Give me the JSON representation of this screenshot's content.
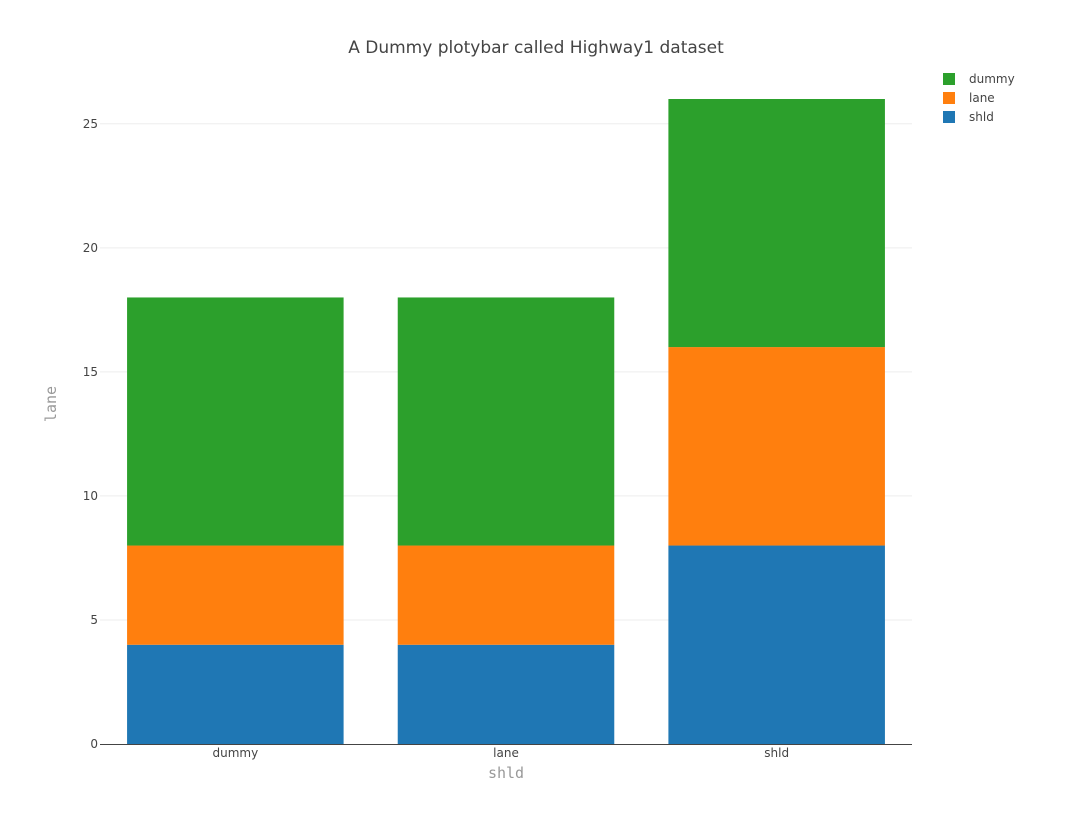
{
  "chart_data": {
    "type": "bar",
    "stacked": true,
    "title": "A Dummy plotybar called Highway1 dataset",
    "xlabel": "shld",
    "ylabel": "lane",
    "categories": [
      "dummy",
      "lane",
      "shld"
    ],
    "series": [
      {
        "name": "shld",
        "color": "#1f77b4",
        "values": [
          4,
          4,
          8
        ]
      },
      {
        "name": "lane",
        "color": "#ff7f0e",
        "values": [
          4,
          4,
          8
        ]
      },
      {
        "name": "dummy",
        "color": "#2ca02c",
        "values": [
          10,
          10,
          10
        ]
      }
    ],
    "ylim": [
      0,
      26
    ],
    "yticks": [
      0,
      5,
      10,
      15,
      20,
      25
    ],
    "ytick_labels": [
      "0",
      "5",
      "10",
      "15",
      "20",
      "25"
    ],
    "grid": true,
    "legend_position": "top-right",
    "legend_order": [
      "dummy",
      "lane",
      "shld"
    ]
  }
}
